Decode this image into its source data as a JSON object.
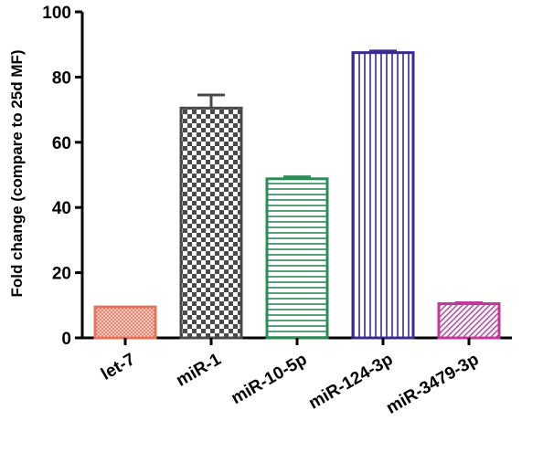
{
  "chart_data": {
    "type": "bar",
    "title": "",
    "xlabel": "",
    "ylabel": "Fold change (compare to 25d MF)",
    "ylim": [
      0,
      100
    ],
    "yticks": [
      0,
      20,
      40,
      60,
      80,
      100
    ],
    "categories": [
      "let-7",
      "miR-1",
      "miR-10-5p",
      "miR-124-3p",
      "miR-3479-3p"
    ],
    "values": [
      9.5,
      70.5,
      48.8,
      87.5,
      10.5
    ],
    "error": [
      0,
      4.0,
      0.6,
      0.5,
      0.3
    ],
    "bar_styles": [
      {
        "color": "#e8735a",
        "pattern": "crosshatch-fine"
      },
      {
        "color": "#4a4a4a",
        "pattern": "checkerboard"
      },
      {
        "color": "#2e8b57",
        "pattern": "horizontal-lines"
      },
      {
        "color": "#3b2a8f",
        "pattern": "vertical-lines"
      },
      {
        "color": "#c0399a",
        "pattern": "diagonal-lines"
      }
    ],
    "grid": false
  }
}
